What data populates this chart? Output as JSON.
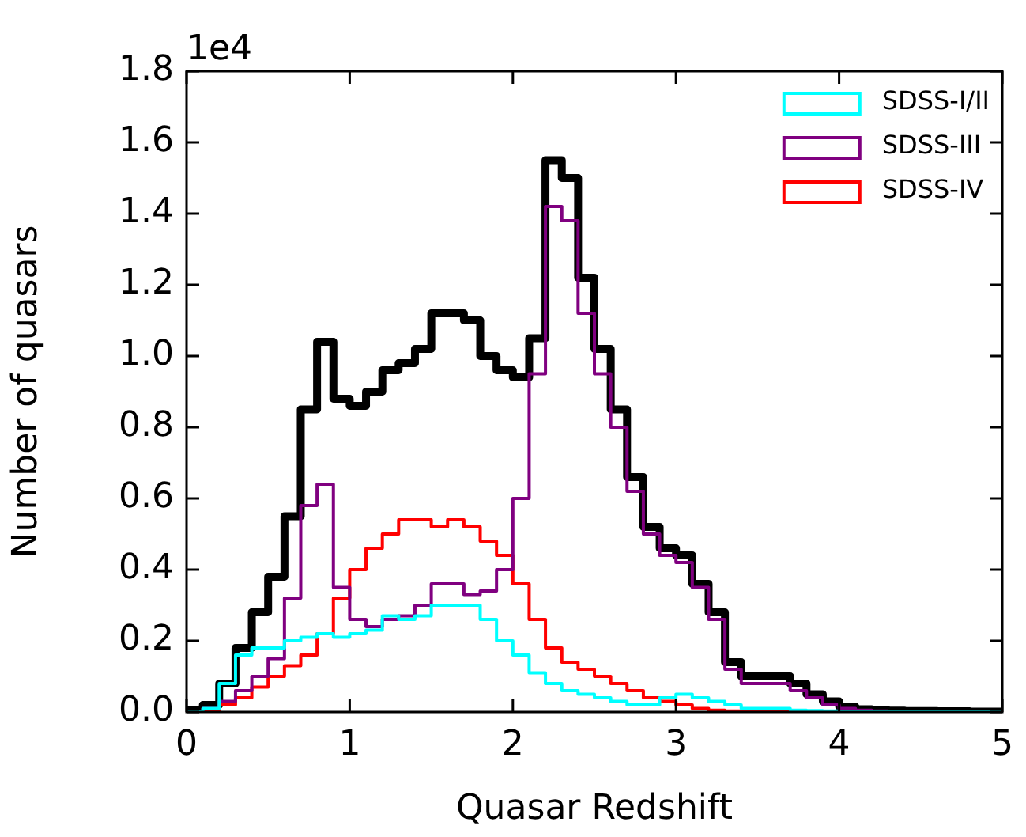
{
  "chart_data": {
    "type": "histogram",
    "xlabel": "Quasar Redshift",
    "ylabel": "Number of quasars",
    "annotations": [
      "1e4"
    ],
    "bins": [
      0,
      0.1,
      0.2,
      0.3,
      0.4,
      0.5,
      0.6,
      0.7,
      0.8,
      0.9,
      1.0,
      1.1,
      1.2,
      1.3,
      1.4,
      1.5,
      1.6,
      1.7,
      1.8,
      1.9,
      2.0,
      2.1,
      2.2,
      2.3,
      2.4,
      2.5,
      2.6,
      2.7,
      2.8,
      2.9,
      3.0,
      3.1,
      3.2,
      3.3,
      3.4,
      3.5,
      3.6,
      3.7,
      3.8,
      3.9,
      4.0,
      4.1,
      4.2,
      4.3,
      4.4,
      4.5,
      4.6,
      4.7,
      4.8,
      4.9,
      5.0
    ],
    "series": [
      {
        "name": "SDSS-I/II",
        "color": "#00ffff",
        "values": [
          0,
          0.01,
          0.08,
          0.16,
          0.18,
          0.18,
          0.2,
          0.21,
          0.22,
          0.21,
          0.22,
          0.23,
          0.27,
          0.26,
          0.27,
          0.3,
          0.3,
          0.3,
          0.26,
          0.2,
          0.16,
          0.11,
          0.08,
          0.06,
          0.05,
          0.04,
          0.03,
          0.02,
          0.02,
          0.04,
          0.05,
          0.04,
          0.03,
          0.02,
          0.01,
          0.01,
          0.01,
          0.005,
          0.004,
          0.003,
          0.002,
          0.001,
          0,
          0,
          0,
          0,
          0,
          0,
          0,
          0
        ]
      },
      {
        "name": "SDSS-III",
        "color": "#800080",
        "values": [
          0,
          0.01,
          0.03,
          0.06,
          0.1,
          0.15,
          0.32,
          0.58,
          0.64,
          0.35,
          0.26,
          0.24,
          0.26,
          0.27,
          0.3,
          0.36,
          0.36,
          0.33,
          0.34,
          0.4,
          0.6,
          0.95,
          1.42,
          1.38,
          1.12,
          0.95,
          0.8,
          0.62,
          0.5,
          0.44,
          0.42,
          0.35,
          0.26,
          0.12,
          0.08,
          0.08,
          0.08,
          0.06,
          0.04,
          0.02,
          0.01,
          0.005,
          0.003,
          0.002,
          0.002,
          0.001,
          0.001,
          0.001,
          0.001,
          0
        ]
      },
      {
        "name": "SDSS-IV",
        "color": "#ff0000",
        "values": [
          0,
          0.005,
          0.02,
          0.04,
          0.07,
          0.1,
          0.13,
          0.16,
          0.22,
          0.32,
          0.4,
          0.46,
          0.5,
          0.54,
          0.54,
          0.52,
          0.54,
          0.52,
          0.48,
          0.44,
          0.36,
          0.26,
          0.18,
          0.14,
          0.12,
          0.1,
          0.08,
          0.06,
          0.04,
          0.03,
          0.02,
          0.01,
          0.005,
          0.003,
          0.002,
          0.001,
          0,
          0,
          0,
          0,
          0,
          0,
          0,
          0,
          0,
          0,
          0,
          0,
          0,
          0
        ]
      },
      {
        "color": "#000000",
        "values": [
          0.005,
          0.02,
          0.08,
          0.18,
          0.28,
          0.38,
          0.55,
          0.85,
          1.04,
          0.88,
          0.86,
          0.9,
          0.96,
          0.98,
          1.02,
          1.12,
          1.12,
          1.1,
          1.0,
          0.96,
          0.94,
          1.05,
          1.55,
          1.5,
          1.22,
          1.02,
          0.85,
          0.66,
          0.52,
          0.46,
          0.44,
          0.36,
          0.28,
          0.14,
          0.1,
          0.1,
          0.1,
          0.08,
          0.05,
          0.03,
          0.015,
          0.008,
          0.005,
          0.004,
          0.003,
          0.003,
          0.002,
          0.002,
          0.001,
          0.001
        ]
      }
    ],
    "xlim": [
      0,
      5
    ],
    "xticks": [
      0,
      1,
      2,
      3,
      4,
      5
    ],
    "ylim": [
      0,
      1.8
    ],
    "yticks": [
      {
        "value": 0,
        "label": "0.0"
      },
      {
        "value": 0.2,
        "label": "0.2"
      },
      {
        "value": 0.4,
        "label": "0.4"
      },
      {
        "value": 0.6,
        "label": "0.6"
      },
      {
        "value": 0.8,
        "label": "0.8"
      },
      {
        "value": 1.0,
        "label": "1.0"
      },
      {
        "value": 1.2,
        "label": "1.2"
      },
      {
        "value": 1.4,
        "label": "1.4"
      },
      {
        "value": 1.6,
        "label": "1.6"
      },
      {
        "value": 1.8,
        "label": "1.8"
      }
    ],
    "grid": false,
    "legend": "top right"
  }
}
